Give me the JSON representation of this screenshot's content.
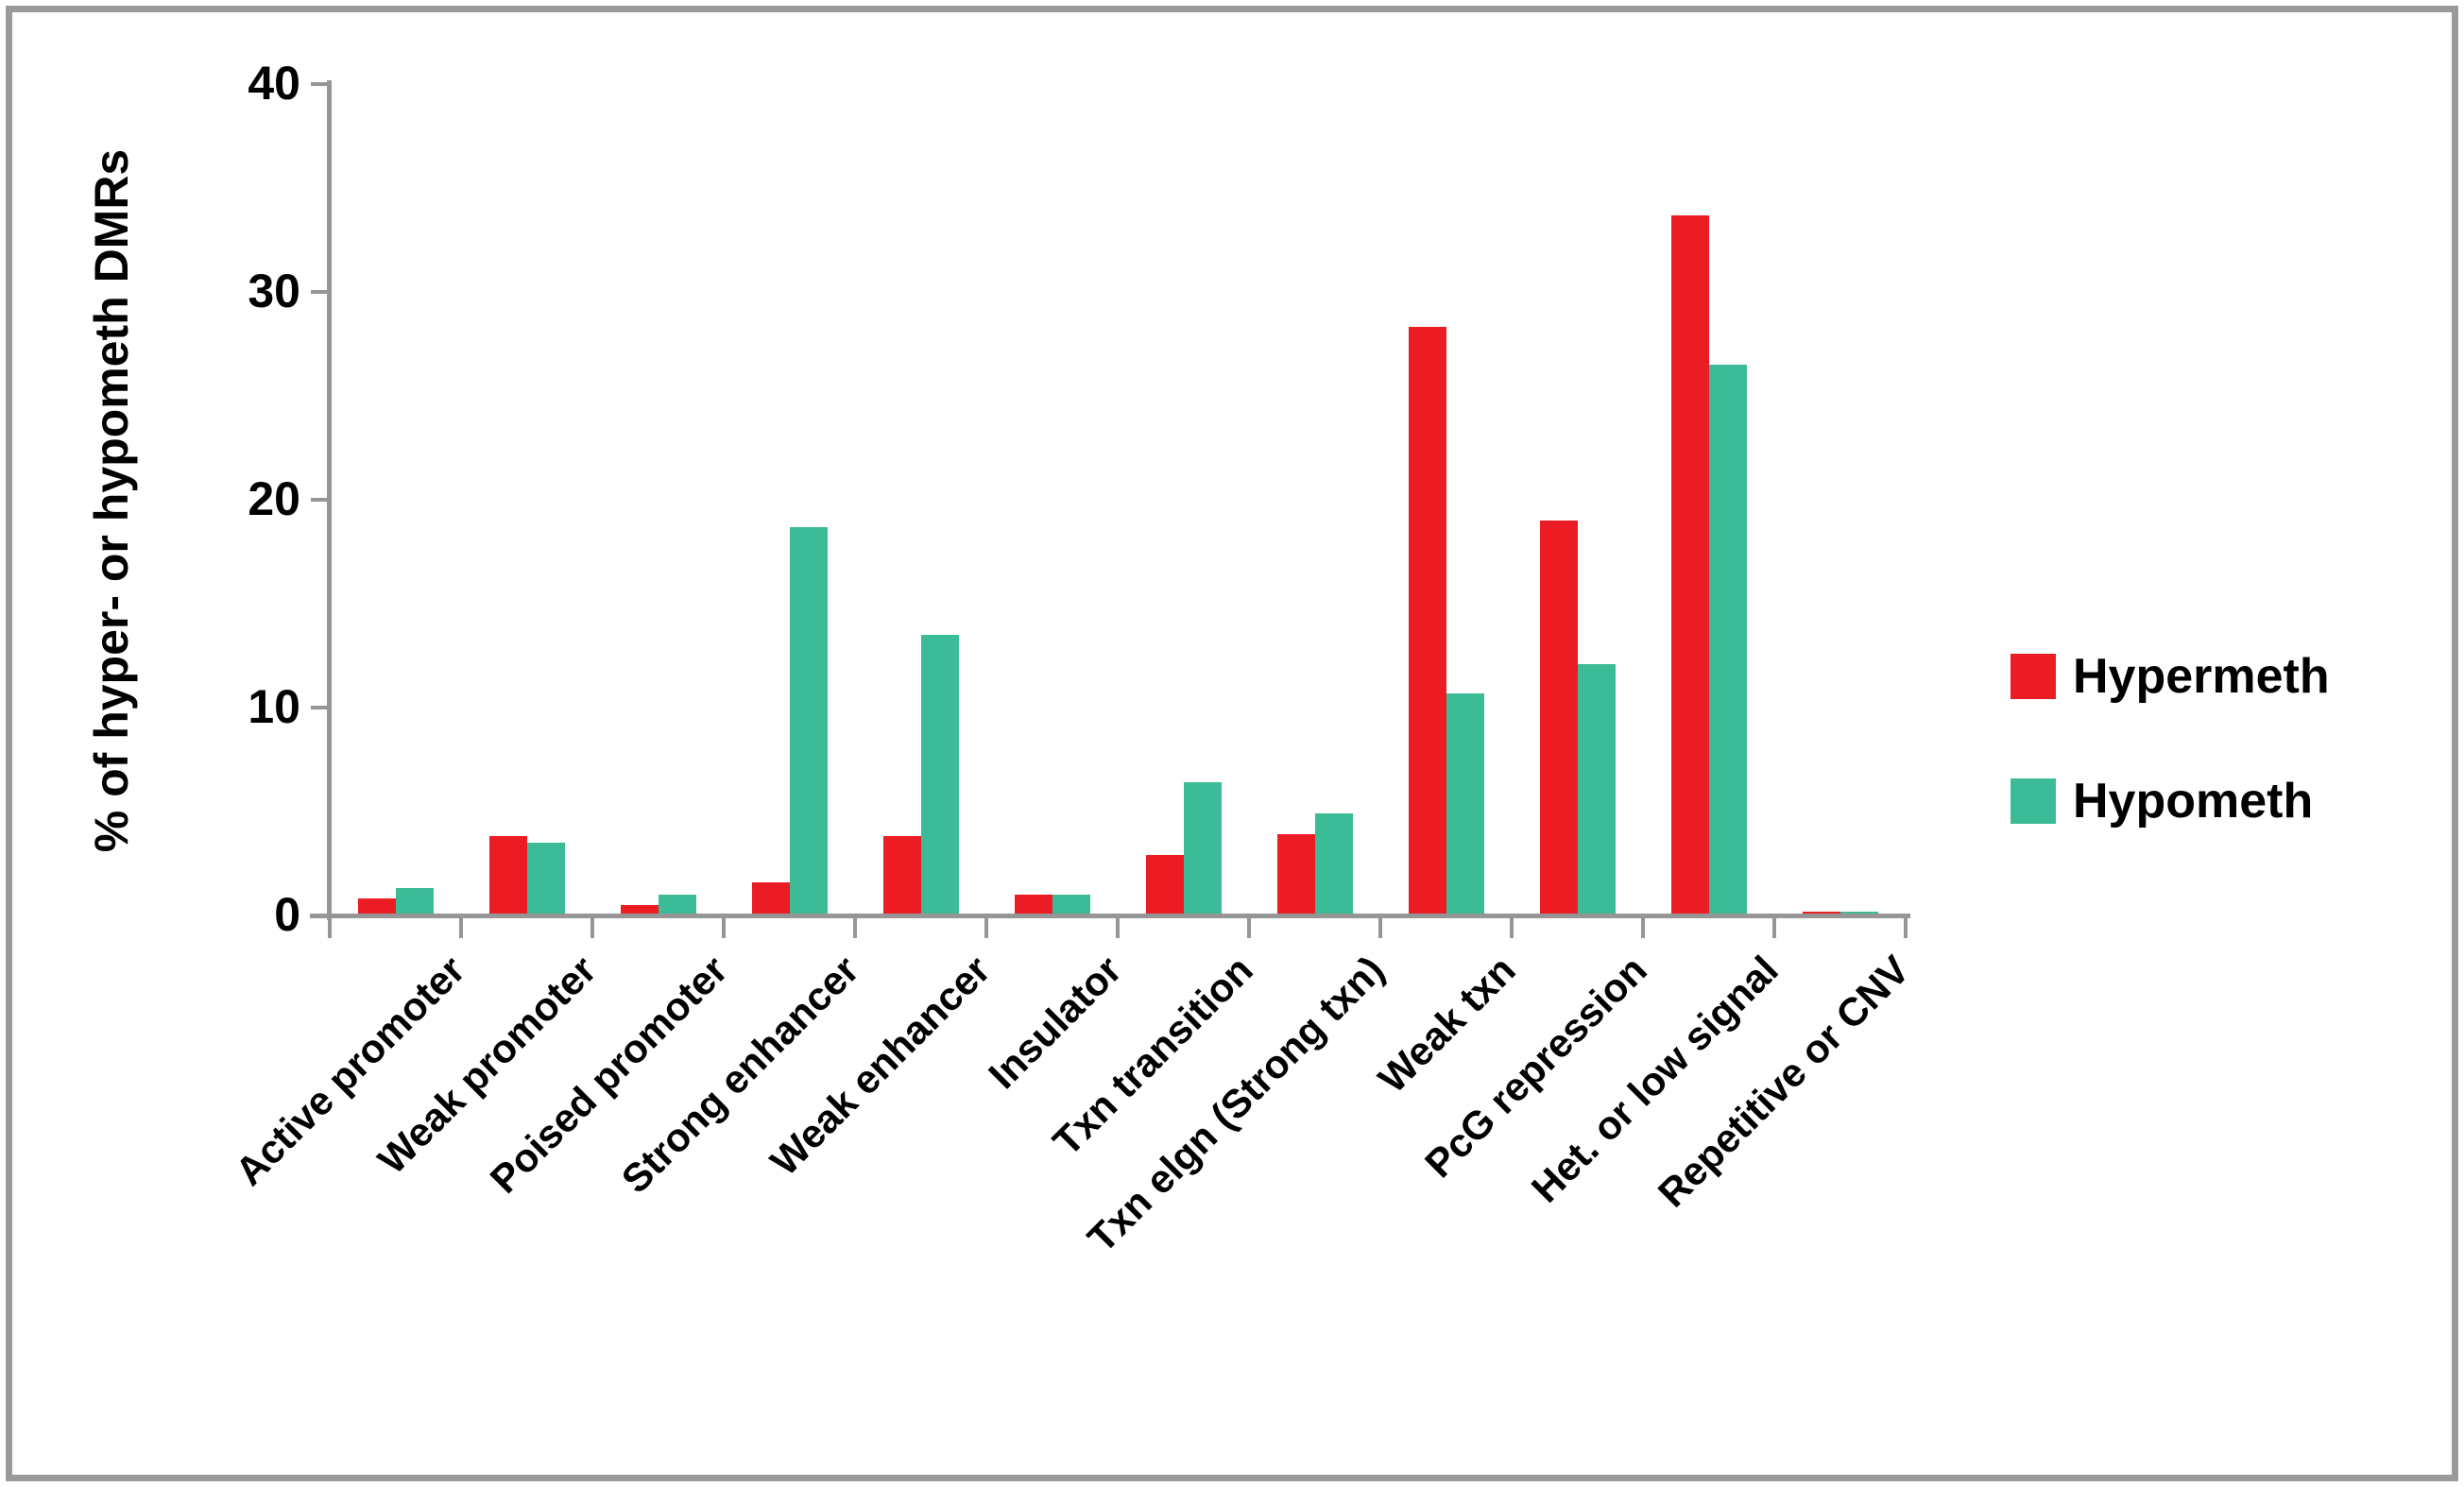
{
  "chart_data": {
    "type": "bar",
    "title": "",
    "ylabel": "% of hyper- or hypometh DMRs",
    "xlabel": "",
    "ylim": [
      0,
      40
    ],
    "yticks": [
      0,
      10,
      20,
      30,
      40
    ],
    "grid": false,
    "legend_position": "right",
    "axis_color": "#969696",
    "categories": [
      "Active promoter",
      "Weak promoter",
      "Poised promoter",
      "Strong enhancer",
      "Weak enhancer",
      "Insulator",
      "Txn transition",
      "Txn elgn (Strong txn)",
      "Weak txn",
      "PcG repression",
      "Het. or low signal",
      "Repetitive or CNV"
    ],
    "series": [
      {
        "name": "Hypermeth",
        "color": "#EC1C24",
        "values": [
          0.8,
          3.8,
          0.5,
          1.6,
          3.8,
          1.0,
          2.9,
          3.9,
          28.3,
          19.0,
          33.7,
          0.2
        ]
      },
      {
        "name": "Hypometh",
        "color": "#3CBC96",
        "values": [
          1.3,
          3.5,
          1.0,
          18.7,
          13.5,
          1.0,
          6.4,
          4.9,
          10.7,
          12.1,
          26.5,
          0.2
        ]
      }
    ]
  }
}
